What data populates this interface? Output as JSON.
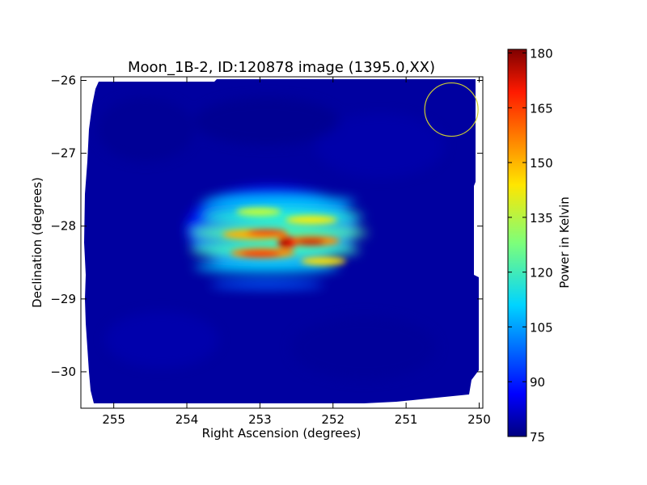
{
  "chart_data": {
    "type": "heatmap",
    "title": "Moon_1B-2, ID:120878 image (1395.0,XX)",
    "xlabel": "Right Ascension (degrees)",
    "ylabel": "Declination (degrees)",
    "xlim": [
      255.45,
      249.95
    ],
    "ylim": [
      -30.5,
      -25.95
    ],
    "x_ticks": [
      255,
      254,
      253,
      252,
      251,
      250
    ],
    "y_ticks": [
      -26,
      -27,
      -28,
      -29,
      -30
    ],
    "x_tick_labels": [
      "255",
      "254",
      "253",
      "252",
      "251",
      "250"
    ],
    "y_tick_labels": [
      "−26",
      "−27",
      "−28",
      "−29",
      "−30"
    ],
    "colorbar": {
      "label": "Power in Kelvin",
      "min": 75,
      "max": 181,
      "ticks": [
        75,
        90,
        105,
        120,
        135,
        150,
        165,
        180
      ],
      "tick_labels": [
        "75",
        "90",
        "105",
        "120",
        "135",
        "150",
        "165",
        "180"
      ],
      "colormap": "jet"
    },
    "background_level": 78,
    "source": {
      "ra_center": 252.7,
      "dec_center": -28.2,
      "peak": 181,
      "fringe_rows_dec": [
        -27.85,
        -28.1,
        -28.35,
        -28.6
      ],
      "fringe_ra_extent": [
        253.9,
        251.6
      ]
    },
    "beam_circle": {
      "ra": 250.38,
      "dec": -26.4,
      "color": "#cccc33"
    },
    "grid": false
  }
}
